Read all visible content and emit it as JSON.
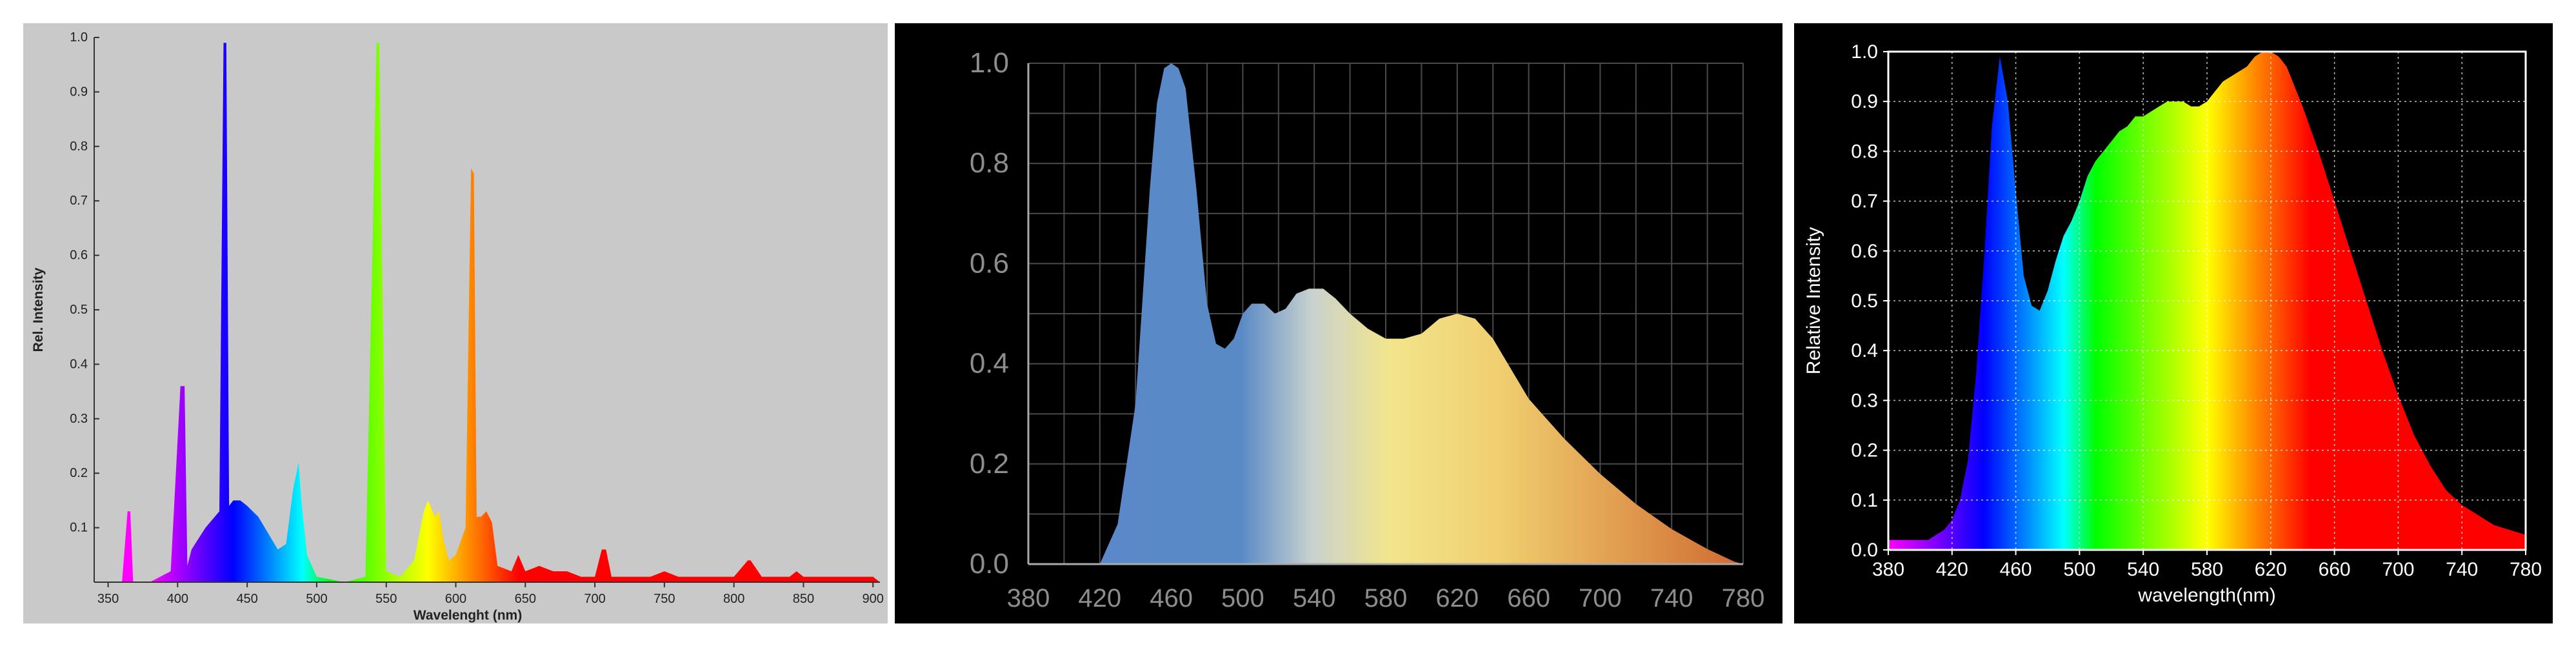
{
  "charts": {
    "colors": {
      "p1_background": "#c9c9c9",
      "p2_background": "#000000",
      "p3_background": "#000000",
      "p2_fill_blue": "#4a7fc1",
      "p2_fill_yellow": "#f2e084",
      "p2_fill_orange": "#d9763a"
    }
  },
  "chart_data": [
    {
      "type": "area",
      "title": "",
      "xlabel": "Wavelenght (nm)",
      "ylabel": "Rel. Intensity",
      "xlim": [
        340,
        905
      ],
      "ylim": [
        0,
        1.0
      ],
      "x_ticks": [
        "350",
        "400",
        "450",
        "500",
        "550",
        "600",
        "650",
        "700",
        "750",
        "800",
        "850",
        "900"
      ],
      "y_ticks": [
        "0.1",
        "0.2",
        "0.3",
        "0.4",
        "0.5",
        "0.6",
        "0.7",
        "0.8",
        "0.9",
        "1.0"
      ],
      "grid": false,
      "series": [
        {
          "x": [
            340,
            360,
            364,
            366,
            368,
            380,
            395,
            402,
            405,
            407,
            410,
            420,
            430,
            433,
            435,
            437,
            440,
            445,
            450,
            458,
            465,
            472,
            478,
            483,
            487,
            489,
            493,
            500,
            520,
            535,
            540,
            543,
            545,
            547,
            550,
            560,
            570,
            577,
            580,
            585,
            588,
            591,
            595,
            600,
            607,
            611,
            613,
            615,
            618,
            622,
            626,
            630,
            640,
            645,
            650,
            660,
            670,
            680,
            690,
            700,
            705,
            708,
            712,
            720,
            740,
            750,
            760,
            780,
            800,
            810,
            812,
            820,
            840,
            845,
            850,
            870,
            880,
            900,
            905
          ],
          "y": [
            0,
            0,
            0.13,
            0.13,
            0,
            0,
            0.02,
            0.36,
            0.36,
            0.03,
            0.06,
            0.1,
            0.13,
            0.99,
            0.99,
            0.14,
            0.15,
            0.15,
            0.14,
            0.12,
            0.09,
            0.06,
            0.07,
            0.17,
            0.22,
            0.15,
            0.05,
            0.01,
            0,
            0.01,
            0.6,
            0.99,
            0.99,
            0.6,
            0.02,
            0.01,
            0.04,
            0.13,
            0.15,
            0.12,
            0.13,
            0.08,
            0.04,
            0.05,
            0.1,
            0.76,
            0.75,
            0.12,
            0.12,
            0.13,
            0.11,
            0.03,
            0.02,
            0.05,
            0.02,
            0.03,
            0.02,
            0.02,
            0.01,
            0.01,
            0.06,
            0.06,
            0.01,
            0.01,
            0.01,
            0.02,
            0.01,
            0.01,
            0.01,
            0.04,
            0.04,
            0.01,
            0.01,
            0.02,
            0.01,
            0.01,
            0.01,
            0.01,
            0
          ]
        }
      ]
    },
    {
      "type": "area",
      "title": "",
      "xlabel": "",
      "ylabel": "",
      "xlim": [
        380,
        780
      ],
      "ylim": [
        0,
        1.0
      ],
      "x_ticks": [
        "380",
        "420",
        "460",
        "500",
        "540",
        "580",
        "620",
        "660",
        "700",
        "740",
        "780"
      ],
      "y_ticks": [
        "0.0",
        "0.2",
        "0.4",
        "0.6",
        "0.8",
        "1.0"
      ],
      "grid": true,
      "series": [
        {
          "x": [
            420,
            430,
            440,
            448,
            452,
            456,
            460,
            464,
            468,
            474,
            480,
            485,
            490,
            495,
            500,
            505,
            512,
            518,
            524,
            530,
            537,
            545,
            552,
            560,
            570,
            580,
            590,
            600,
            610,
            620,
            630,
            640,
            650,
            660,
            680,
            700,
            720,
            740,
            760,
            775,
            780
          ],
          "y": [
            0,
            0.08,
            0.32,
            0.75,
            0.92,
            0.99,
            1.0,
            0.99,
            0.95,
            0.75,
            0.52,
            0.44,
            0.43,
            0.45,
            0.5,
            0.52,
            0.52,
            0.5,
            0.51,
            0.54,
            0.55,
            0.55,
            0.53,
            0.5,
            0.47,
            0.45,
            0.45,
            0.46,
            0.49,
            0.5,
            0.49,
            0.45,
            0.39,
            0.33,
            0.25,
            0.18,
            0.12,
            0.07,
            0.03,
            0.005,
            0
          ]
        }
      ]
    },
    {
      "type": "area",
      "title": "",
      "xlabel": "wavelength(nm)",
      "ylabel": "Relative Intensity",
      "xlim": [
        380,
        780
      ],
      "ylim": [
        0,
        1.0
      ],
      "x_ticks": [
        "380",
        "420",
        "460",
        "500",
        "540",
        "580",
        "620",
        "660",
        "700",
        "740",
        "780"
      ],
      "y_ticks": [
        "0.0",
        "0.1",
        "0.2",
        "0.3",
        "0.4",
        "0.5",
        "0.6",
        "0.7",
        "0.8",
        "0.9",
        "1.0"
      ],
      "grid": true,
      "series": [
        {
          "x": [
            380,
            390,
            400,
            405,
            410,
            415,
            420,
            425,
            430,
            435,
            440,
            445,
            450,
            455,
            460,
            465,
            470,
            475,
            480,
            485,
            490,
            495,
            500,
            505,
            510,
            515,
            520,
            525,
            530,
            535,
            540,
            545,
            550,
            555,
            560,
            565,
            570,
            575,
            580,
            585,
            590,
            595,
            600,
            605,
            610,
            615,
            620,
            625,
            630,
            635,
            640,
            650,
            660,
            670,
            680,
            690,
            700,
            710,
            720,
            730,
            740,
            750,
            760,
            770,
            780
          ],
          "y": [
            0.02,
            0.02,
            0.02,
            0.02,
            0.03,
            0.04,
            0.06,
            0.1,
            0.18,
            0.35,
            0.58,
            0.85,
            0.99,
            0.9,
            0.72,
            0.55,
            0.49,
            0.48,
            0.52,
            0.58,
            0.63,
            0.66,
            0.7,
            0.75,
            0.78,
            0.8,
            0.82,
            0.84,
            0.85,
            0.87,
            0.87,
            0.88,
            0.89,
            0.9,
            0.9,
            0.9,
            0.89,
            0.89,
            0.9,
            0.92,
            0.94,
            0.95,
            0.96,
            0.97,
            0.99,
            1.0,
            1.0,
            0.99,
            0.97,
            0.93,
            0.89,
            0.8,
            0.7,
            0.6,
            0.5,
            0.4,
            0.31,
            0.23,
            0.17,
            0.12,
            0.09,
            0.07,
            0.05,
            0.04,
            0.03
          ]
        }
      ]
    }
  ]
}
